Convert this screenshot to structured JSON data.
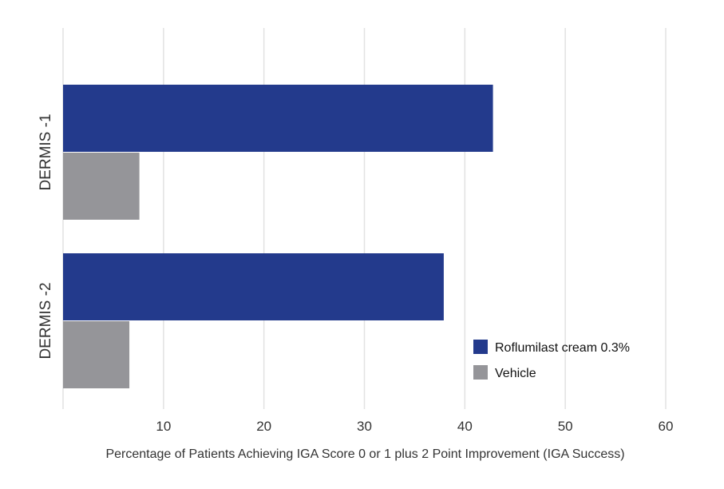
{
  "chart_data": {
    "type": "bar",
    "orientation": "horizontal",
    "categories": [
      "DERMIS -1",
      "DERMIS -2"
    ],
    "series": [
      {
        "name": "Roflumilast cream 0.3%",
        "color": "#233a8c",
        "values": [
          42.8,
          37.9
        ]
      },
      {
        "name": "Vehicle",
        "color": "#959599",
        "values": [
          7.6,
          6.6
        ]
      }
    ],
    "xlabel": "Percentage of Patients  Achieving  IGA Score 0 or 1 plus 2 Point Improvement (IGA Success)",
    "xlim": [
      0,
      60
    ],
    "xticks": [
      10,
      20,
      30,
      40,
      50,
      60
    ],
    "grid": true,
    "legend_position": "bottom-right"
  }
}
